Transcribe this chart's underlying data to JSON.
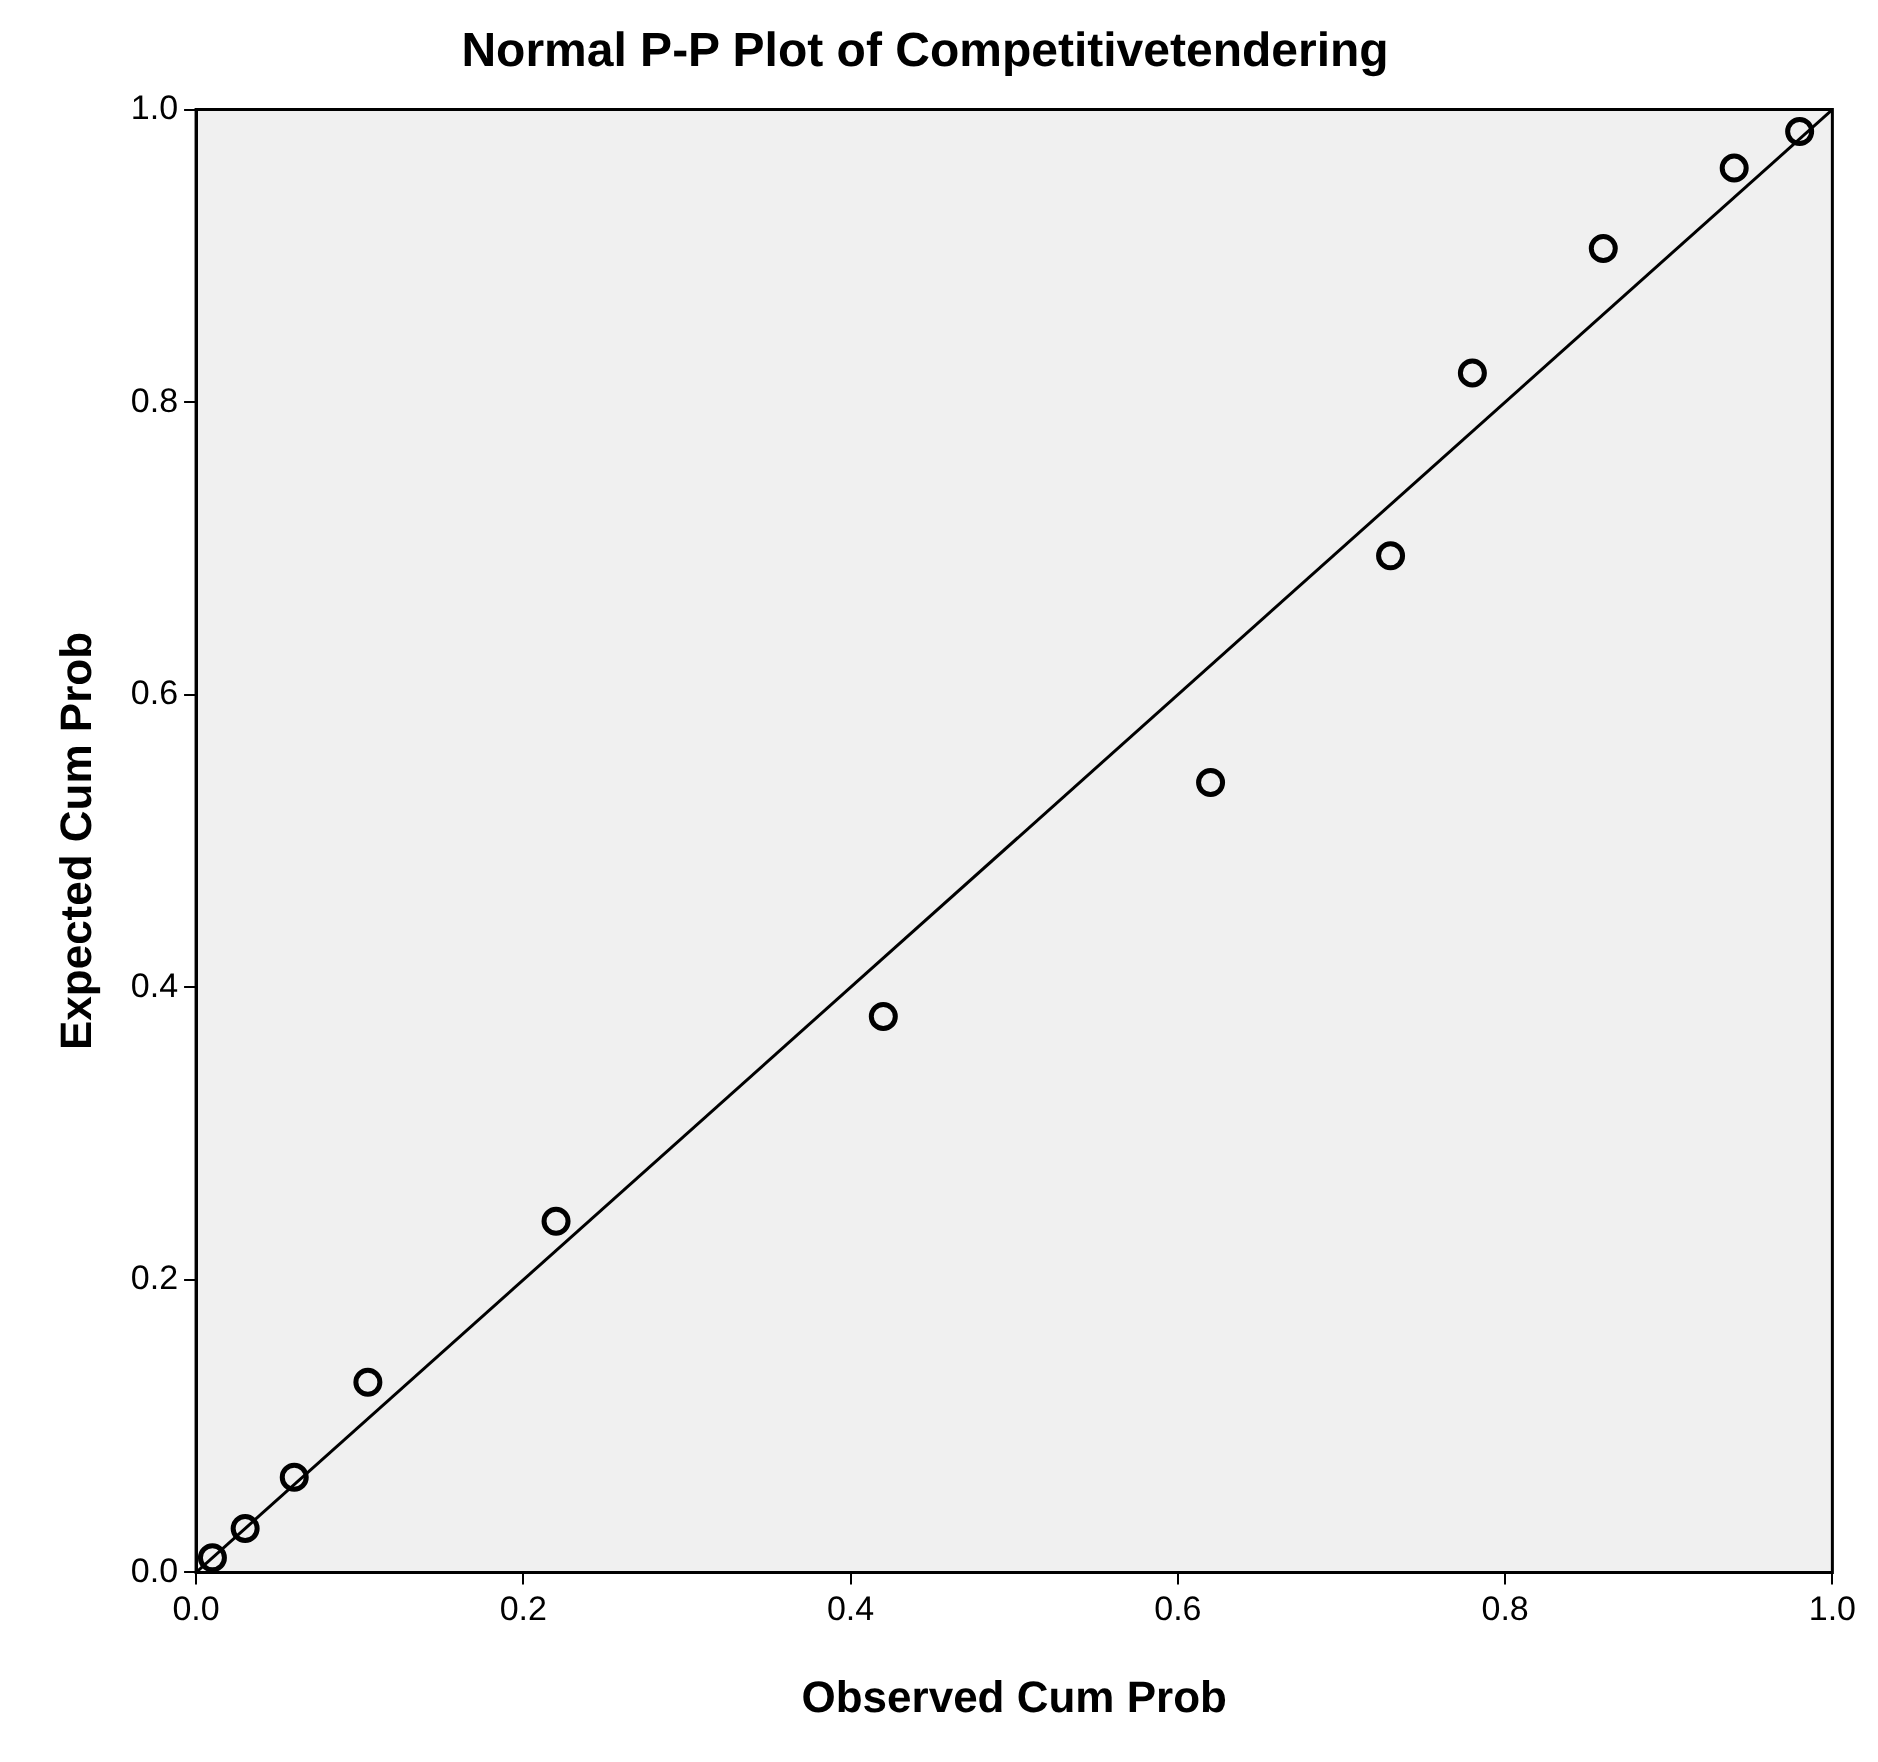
{
  "chart_data": {
    "type": "scatter",
    "title": "Normal P-P Plot of Competitivetendering",
    "xlabel": "Observed Cum Prob",
    "ylabel": "Expected Cum Prob",
    "series": [
      {
        "color": "#000000",
        "x": [
          0.01,
          0.03,
          0.06,
          0.105,
          0.22,
          0.42,
          0.62,
          0.73,
          0.78,
          0.86,
          0.94,
          0.98
        ],
        "values": [
          0.01,
          0.03,
          0.065,
          0.13,
          0.24,
          0.38,
          0.54,
          0.695,
          0.82,
          0.905,
          0.96,
          0.985
        ],
        "marker": "circle"
      },
      {
        "type": "line",
        "color": "#000000",
        "x": [
          0,
          1
        ],
        "values": [
          0,
          1
        ],
        "marker": "none",
        "line_style": "solid"
      }
    ],
    "xlim": [
      0,
      1
    ],
    "ylim": [
      0,
      1
    ],
    "xticks": [
      {
        "value": 0,
        "label": "0.0"
      },
      {
        "value": 0.2,
        "label": "0.2"
      },
      {
        "value": 0.4,
        "label": "0.4"
      },
      {
        "value": 0.6,
        "label": "0.6"
      },
      {
        "value": 0.8,
        "label": "0.8"
      },
      {
        "value": 1,
        "label": "1.0"
      }
    ],
    "yticks": [
      {
        "value": 0,
        "label": "0.0"
      },
      {
        "value": 0.2,
        "label": "0.2"
      },
      {
        "value": 0.4,
        "label": "0.4"
      },
      {
        "value": 0.6,
        "label": "0.6"
      },
      {
        "value": 0.8,
        "label": "0.8"
      },
      {
        "value": 1,
        "label": "1.0"
      }
    ],
    "grid": false,
    "legend": false
  }
}
